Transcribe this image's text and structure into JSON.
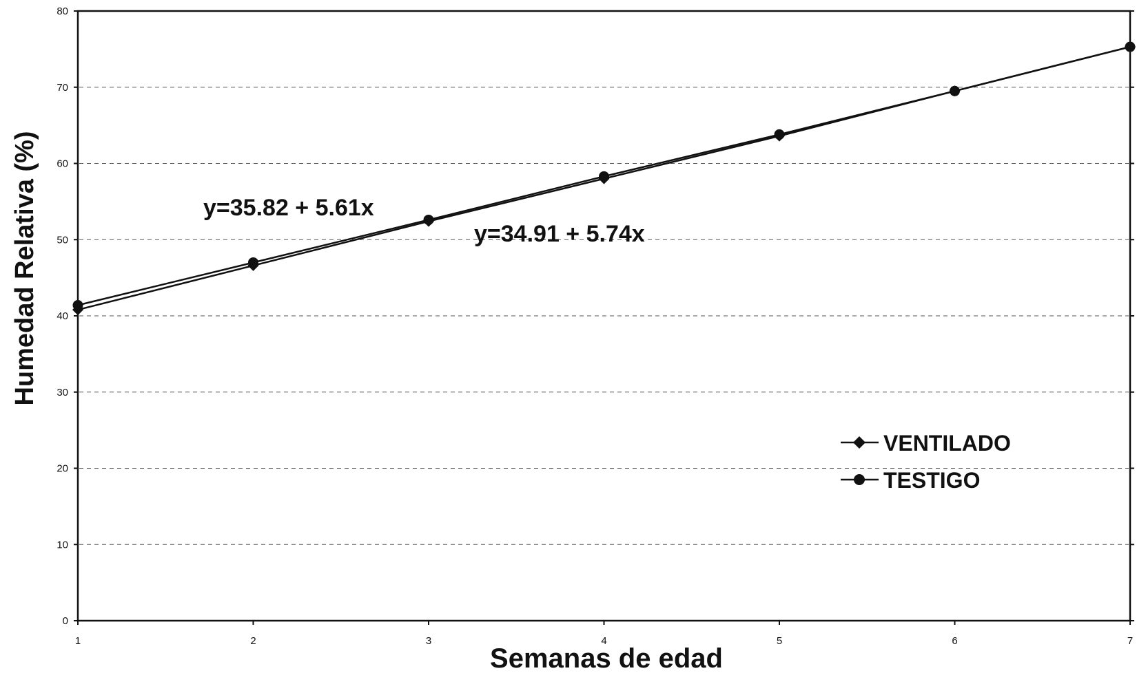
{
  "chart_data": {
    "type": "line",
    "title": "",
    "xlabel": "Semanas de edad",
    "ylabel": "Humedad Relativa (%)",
    "x": [
      1,
      2,
      3,
      4,
      5,
      6,
      7
    ],
    "xlim": [
      1,
      7
    ],
    "ylim": [
      0,
      80
    ],
    "yticks": [
      0,
      10,
      20,
      30,
      40,
      50,
      60,
      70,
      80
    ],
    "xticks": [
      1,
      2,
      3,
      4,
      5,
      6,
      7
    ],
    "grid": "horizontal dashed",
    "legend_position": "lower-right",
    "series": [
      {
        "name": "VENTILADO",
        "marker": "diamond",
        "values": [
          40.8,
          46.6,
          52.4,
          58.0,
          63.6,
          69.5,
          75.3
        ]
      },
      {
        "name": "TESTIGO",
        "marker": "circle",
        "values": [
          41.4,
          47.0,
          52.6,
          58.3,
          63.8,
          69.5,
          75.3
        ]
      }
    ],
    "annotations": [
      {
        "text": "y=35.82 + 5.61x"
      },
      {
        "text": "y=34.91 + 5.74x"
      }
    ]
  }
}
